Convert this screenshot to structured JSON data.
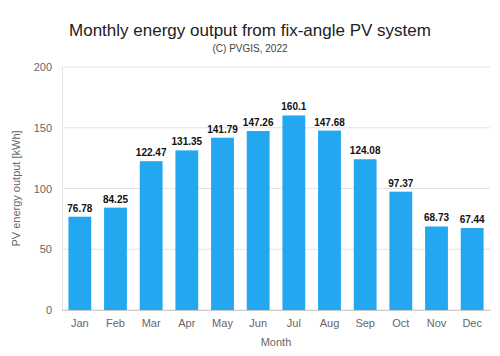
{
  "chart_data": {
    "type": "bar",
    "title": "Monthly energy output from fix-angle PV system",
    "subtitle": "(C) PVGIS, 2022",
    "x_label": "Month",
    "y_label": "PV energy output [kWh]",
    "categories": [
      "Jan",
      "Feb",
      "Mar",
      "Apr",
      "May",
      "Jun",
      "Jul",
      "Aug",
      "Sep",
      "Oct",
      "Nov",
      "Dec"
    ],
    "values": [
      76.78,
      84.25,
      122.47,
      131.35,
      141.79,
      147.26,
      160.1,
      147.68,
      124.08,
      97.37,
      68.73,
      67.44
    ],
    "color": "#22a7f0",
    "ylim": [
      0,
      200
    ],
    "yticks": [
      0,
      50,
      100,
      150,
      200
    ],
    "grid": true,
    "data_labels": true
  }
}
